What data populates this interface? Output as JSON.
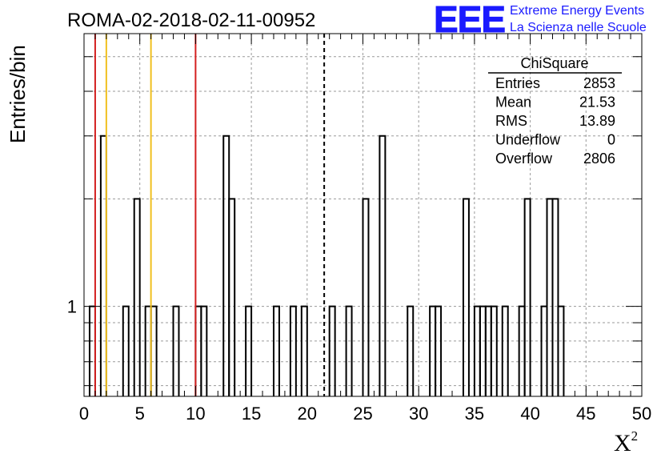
{
  "chart_data": {
    "type": "bar",
    "title": "ROMA-02-2018-02-11-00952",
    "xlabel": "X",
    "xlabel_superscript": "2",
    "ylabel": "Entries/bin",
    "xlim": [
      0,
      50
    ],
    "bin_width": 0.5,
    "y_scale": "log",
    "ylim": [
      0.56,
      5.8
    ],
    "grid": true,
    "x_ticks": [
      "0",
      "5",
      "10",
      "15",
      "20",
      "25",
      "30",
      "35",
      "40",
      "45",
      "50"
    ],
    "y_tick_labels": [
      {
        "value": 1,
        "label": "1"
      }
    ],
    "histogram_color": "#000000",
    "bins": [
      {
        "x": 0.5,
        "y": 1
      },
      {
        "x": 1.5,
        "y": 3
      },
      {
        "x": 3.5,
        "y": 1
      },
      {
        "x": 4.5,
        "y": 2
      },
      {
        "x": 5.5,
        "y": 1
      },
      {
        "x": 6.0,
        "y": 1
      },
      {
        "x": 8.0,
        "y": 1
      },
      {
        "x": 10.0,
        "y": 1
      },
      {
        "x": 10.5,
        "y": 1
      },
      {
        "x": 12.5,
        "y": 3
      },
      {
        "x": 13.0,
        "y": 2
      },
      {
        "x": 14.5,
        "y": 1
      },
      {
        "x": 17.0,
        "y": 1
      },
      {
        "x": 18.5,
        "y": 1
      },
      {
        "x": 19.5,
        "y": 1
      },
      {
        "x": 22.0,
        "y": 1
      },
      {
        "x": 23.5,
        "y": 1
      },
      {
        "x": 25.0,
        "y": 2
      },
      {
        "x": 26.5,
        "y": 3
      },
      {
        "x": 29.0,
        "y": 1
      },
      {
        "x": 31.0,
        "y": 1
      },
      {
        "x": 31.5,
        "y": 1
      },
      {
        "x": 34.0,
        "y": 2
      },
      {
        "x": 35.0,
        "y": 1
      },
      {
        "x": 35.5,
        "y": 1
      },
      {
        "x": 36.0,
        "y": 1
      },
      {
        "x": 36.5,
        "y": 1
      },
      {
        "x": 37.5,
        "y": 1
      },
      {
        "x": 39.0,
        "y": 1
      },
      {
        "x": 39.5,
        "y": 2
      },
      {
        "x": 41.0,
        "y": 1
      },
      {
        "x": 41.5,
        "y": 2
      },
      {
        "x": 42.0,
        "y": 2
      },
      {
        "x": 42.5,
        "y": 1
      }
    ],
    "vertical_lines": [
      {
        "x": 1.0,
        "color": "#d42020",
        "style": "solid"
      },
      {
        "x": 2.0,
        "color": "#f0c020",
        "style": "solid"
      },
      {
        "x": 6.0,
        "color": "#f0c020",
        "style": "solid"
      },
      {
        "x": 10.0,
        "color": "#d42020",
        "style": "solid"
      },
      {
        "x": 21.53,
        "color": "#000000",
        "style": "dashed"
      }
    ],
    "stats_box": {
      "title": "ChiSquare",
      "rows": [
        {
          "label": "Entries",
          "value": "2853"
        },
        {
          "label": "Mean",
          "value": "21.53"
        },
        {
          "label": "RMS",
          "value": "13.89"
        },
        {
          "label": "Underflow",
          "value": "0"
        },
        {
          "label": "Overflow",
          "value": "2806"
        }
      ]
    }
  },
  "logo": {
    "mark": "EEE",
    "line1": "Extreme Energy Events",
    "line2": "La Scienza nelle Scuole",
    "color": "#1a1aff"
  }
}
